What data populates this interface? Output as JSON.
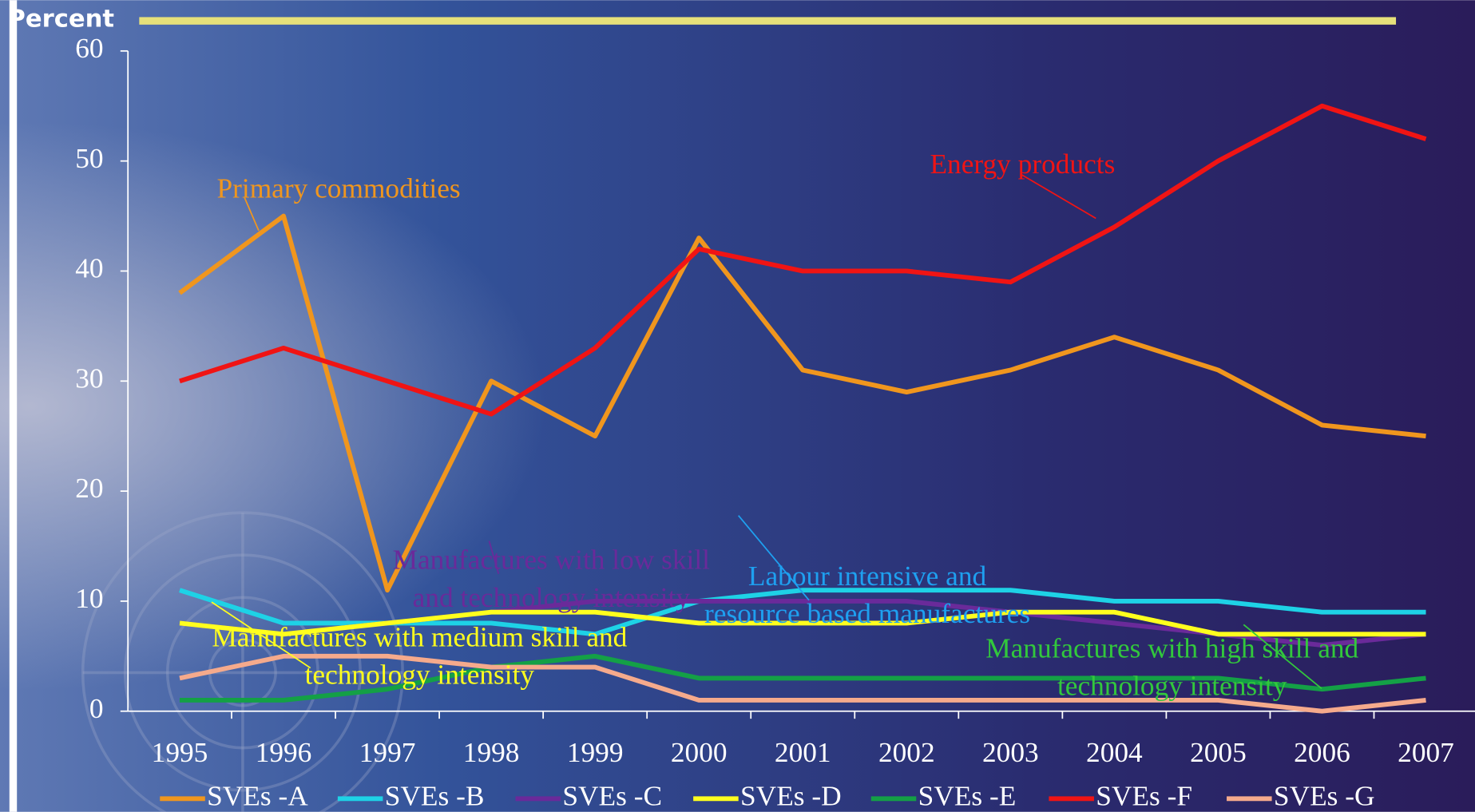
{
  "chart_data": {
    "type": "line",
    "y_label": "Percent",
    "categories": [
      "1995",
      "1996",
      "1997",
      "1998",
      "1999",
      "2000",
      "2001",
      "2002",
      "2003",
      "2004",
      "2005",
      "2006",
      "2007"
    ],
    "ylim": [
      0,
      60
    ],
    "yticks": [
      0,
      10,
      20,
      30,
      40,
      50,
      60
    ],
    "series": [
      {
        "name": "SVEs -A",
        "color": "#f0961e",
        "values": [
          38,
          45,
          11,
          30,
          25,
          43,
          31,
          29,
          31,
          34,
          31,
          26,
          25
        ]
      },
      {
        "name": "SVEs -B",
        "color": "#1ed2e6",
        "values": [
          11,
          8,
          8,
          8,
          7,
          10,
          11,
          11,
          11,
          10,
          10,
          9,
          9
        ]
      },
      {
        "name": "SVEs -C",
        "color": "#6a2a9a",
        "values": [
          8,
          7,
          8,
          9,
          10,
          10,
          10,
          10,
          9,
          8,
          7,
          6,
          7
        ]
      },
      {
        "name": "SVEs -D",
        "color": "#ffff1e",
        "values": [
          8,
          7,
          8,
          9,
          9,
          8,
          8,
          8,
          9,
          9,
          7,
          7,
          7
        ]
      },
      {
        "name": "SVEs -E",
        "color": "#14a046",
        "values": [
          1,
          1,
          2,
          4,
          5,
          3,
          3,
          3,
          3,
          3,
          3,
          2,
          3
        ]
      },
      {
        "name": "SVEs -F",
        "color": "#f01414",
        "values": [
          30,
          33,
          30,
          27,
          33,
          42,
          40,
          40,
          39,
          44,
          50,
          55,
          52
        ]
      },
      {
        "name": "SVEs -G",
        "color": "#f5aa8c",
        "values": [
          3,
          5,
          5,
          4,
          4,
          1,
          1,
          1,
          1,
          1,
          1,
          0,
          1
        ]
      }
    ],
    "annotations": [
      {
        "lines": [
          "Primary commodities"
        ],
        "color": "#f0961e"
      },
      {
        "lines": [
          "Energy products"
        ],
        "color": "#f01414"
      },
      {
        "lines": [
          "Manufactures with low skill",
          "and technology intensity"
        ],
        "color": "#6a2a9a"
      },
      {
        "lines": [
          "Labour intensive and",
          "resource based manufactures"
        ],
        "color": "#1ea0f0"
      },
      {
        "lines": [
          "Manufactures with medium skill and",
          "technology intensity"
        ],
        "color": "#ffff1e"
      },
      {
        "lines": [
          "Manufactures with high skill and",
          "technology intensity"
        ],
        "color": "#32c83c"
      }
    ]
  }
}
